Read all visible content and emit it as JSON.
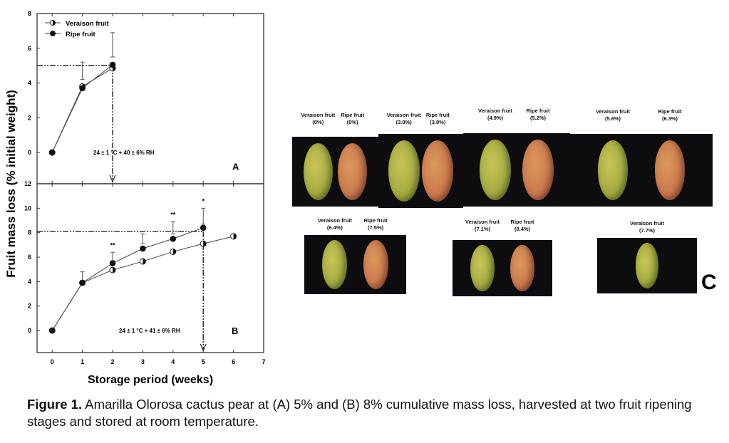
{
  "chart_data": [
    {
      "type": "line",
      "panel": "A",
      "xlim": [
        -0.5,
        7
      ],
      "ylim": [
        -1.8,
        8
      ],
      "yticks": [
        0,
        2,
        4,
        6,
        8
      ],
      "x": [
        0,
        1,
        2
      ],
      "series": [
        {
          "name": "Veraison fruit",
          "values": [
            0,
            3.8,
            4.85
          ]
        },
        {
          "name": "Ripe fruit",
          "values": [
            0,
            3.7,
            5.05
          ]
        }
      ],
      "error_bars": [
        {
          "x": 1,
          "low": 4.2,
          "high": 5.2
        },
        {
          "x": 2,
          "low": 5.5,
          "high": 6.9
        }
      ],
      "reference": {
        "y": 5,
        "x": 2
      },
      "annotation": "24 ± 1 °C + 40 ± 6% RH",
      "panel_label": "A"
    },
    {
      "type": "line",
      "panel": "B",
      "xlim": [
        -0.5,
        7
      ],
      "ylim": [
        -1.8,
        12
      ],
      "yticks": [
        0,
        2,
        4,
        6,
        8,
        10,
        12
      ],
      "xticks": [
        0,
        1,
        2,
        3,
        4,
        5,
        6,
        7
      ],
      "series": [
        {
          "name": "Veraison fruit",
          "x": [
            0,
            1,
            2,
            3,
            4,
            5,
            6
          ],
          "values": [
            0,
            3.9,
            4.95,
            5.65,
            6.45,
            7.1,
            7.7
          ]
        },
        {
          "name": "Ripe fruit",
          "x": [
            0,
            1,
            2,
            3,
            4,
            5
          ],
          "values": [
            0,
            3.9,
            5.5,
            6.7,
            7.5,
            8.4
          ]
        }
      ],
      "error_bars": [
        {
          "x": 1,
          "low": 4.1,
          "high": 4.8
        },
        {
          "x": 2,
          "low": 5.7,
          "high": 6.4
        },
        {
          "x": 3,
          "low": 7.1,
          "high": 7.9
        },
        {
          "x": 4,
          "low": 7.9,
          "high": 8.9
        },
        {
          "x": 5,
          "low": 8.7,
          "high": 10.0
        }
      ],
      "significance": [
        {
          "x": 2,
          "y": 6.8,
          "mark": "**"
        },
        {
          "x": 4,
          "y": 9.3,
          "mark": "**"
        },
        {
          "x": 5,
          "y": 10.4,
          "mark": "*"
        }
      ],
      "reference": {
        "y": 8.1,
        "x": 5
      },
      "annotation": "24 ± 1 °C + 41 ± 6% RH",
      "panel_label": "B"
    }
  ],
  "ylabel": "Fruit mass loss (% initial weight)",
  "xlabel": "Storage period (weeks)",
  "legend": [
    "Veraison fruit",
    "Ripe fruit"
  ],
  "photos": [
    [
      {
        "name": "Veraison fruit",
        "pct": "(0%)"
      },
      {
        "name": "Ripe fruit",
        "pct": "(0%)"
      }
    ],
    [
      {
        "name": "Veraison fruit",
        "pct": "(3.8%)"
      },
      {
        "name": "Ripe fruit",
        "pct": "(3.8%)"
      }
    ],
    [
      {
        "name": "Veraison fruit",
        "pct": "(4.9%)"
      },
      {
        "name": "Ripe fruit",
        "pct": "(5.2%)"
      }
    ],
    [
      {
        "name": "Veraison fruit",
        "pct": "(5.6%)"
      },
      {
        "name": "Ripe fruit",
        "pct": "(6.3%)"
      }
    ],
    [
      {
        "name": "Veraison fruit",
        "pct": "(6.4%)"
      },
      {
        "name": "Ripe fruit",
        "pct": "(7.5%)"
      }
    ],
    [
      {
        "name": "Veraison fruit",
        "pct": "(7.1%)"
      },
      {
        "name": "Ripe fruit",
        "pct": "(8.4%)"
      }
    ],
    [
      {
        "name": "Veraison fruit",
        "pct": "(7.7%)"
      }
    ]
  ],
  "panel_c_label": "C",
  "caption": {
    "bold": "Figure 1.",
    "text": " Amarilla Olorosa cactus pear at (A) 5% and (B) 8% cumulative mass loss, harvested at two fruit ripening stages and stored at room temperature."
  }
}
